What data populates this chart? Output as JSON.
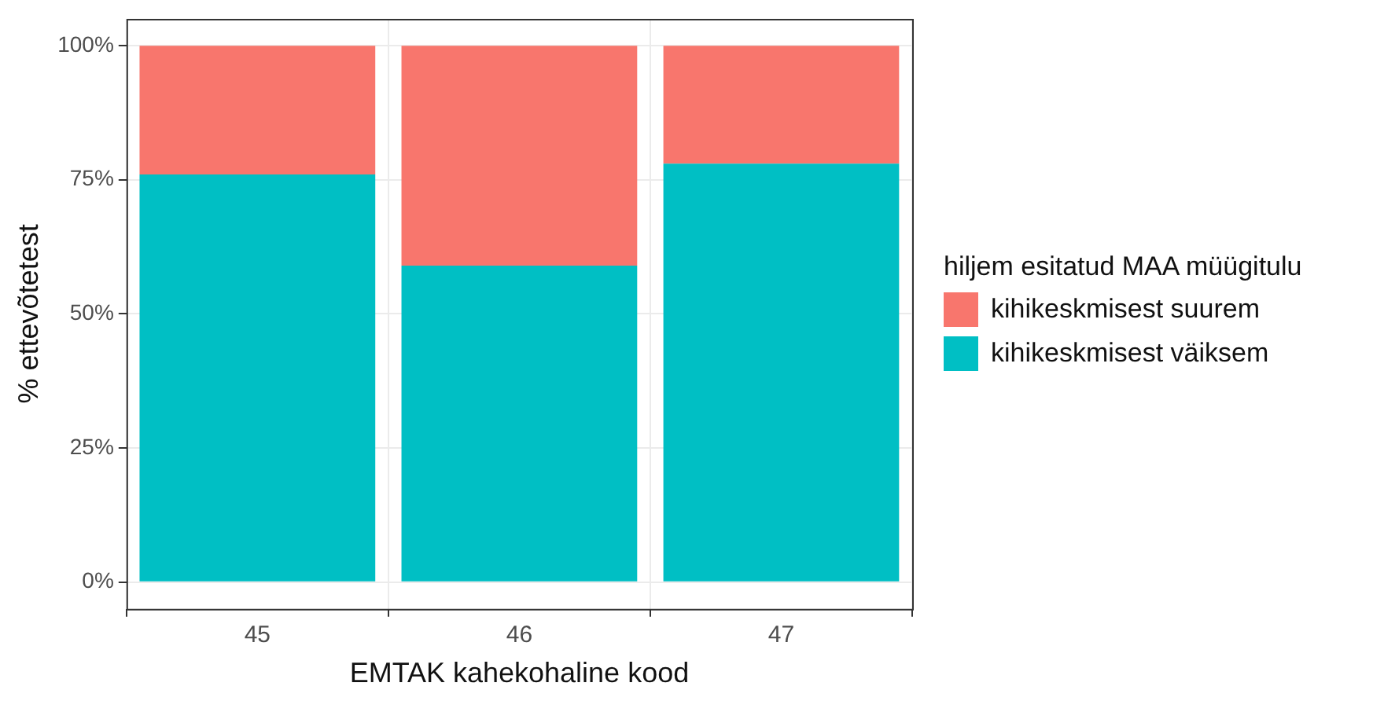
{
  "chart_data": {
    "type": "bar",
    "stacked": true,
    "xlabel": "EMTAK kahekohaline kood",
    "ylabel": "% ettevõtetest",
    "legend_title": "hiljem esitatud MAA müügitulu",
    "categories": [
      "45",
      "46",
      "47"
    ],
    "series": [
      {
        "name": "kihikeskmisest väiksem",
        "color": "#00bfc4",
        "values": [
          76,
          59,
          78
        ]
      },
      {
        "name": "kihikeskmisest suurem",
        "color": "#f8766d",
        "values": [
          24,
          41,
          22
        ]
      }
    ],
    "ylim": [
      -5,
      105
    ],
    "yticks": [
      {
        "value": 0,
        "label": "0%"
      },
      {
        "value": 25,
        "label": "25%"
      },
      {
        "value": 50,
        "label": "50%"
      },
      {
        "value": 75,
        "label": "75%"
      },
      {
        "value": 100,
        "label": "100%"
      }
    ],
    "grid": true,
    "legend": "right"
  }
}
